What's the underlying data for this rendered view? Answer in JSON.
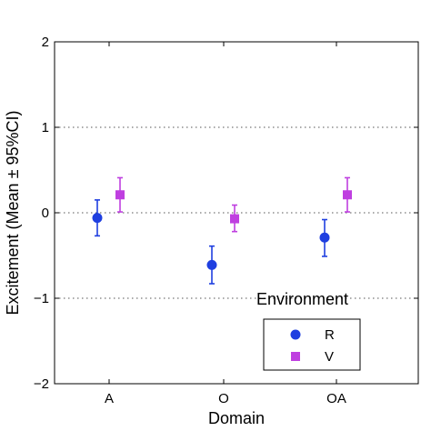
{
  "chart_data": {
    "type": "scatter",
    "categories": [
      "A",
      "O",
      "OA"
    ],
    "xlabel": "Domain",
    "ylabel": "Excitement (Mean ± 95%CI)",
    "ylim": [
      -2,
      2
    ],
    "yticks": [
      -2,
      -1,
      0,
      1,
      2
    ],
    "ytick_labels": [
      "−2",
      "−1",
      "0",
      "1",
      "2"
    ],
    "grid": "horizontal dotted at y = -1, 0, 1",
    "legend": {
      "title": "Environment",
      "placement": "bottom-right"
    },
    "series": [
      {
        "name": "R",
        "marker": "circle",
        "color": "#1f3fe0",
        "values": [
          -0.06,
          -0.61,
          -0.29
        ],
        "ci_low": [
          -0.27,
          -0.83,
          -0.51
        ],
        "ci_high": [
          0.15,
          -0.39,
          -0.08
        ]
      },
      {
        "name": "V",
        "marker": "square",
        "color": "#bf3fe0",
        "values": [
          0.21,
          -0.07,
          0.21
        ],
        "ci_low": [
          0.01,
          -0.22,
          0.01
        ],
        "ci_high": [
          0.41,
          0.09,
          0.41
        ]
      }
    ]
  }
}
